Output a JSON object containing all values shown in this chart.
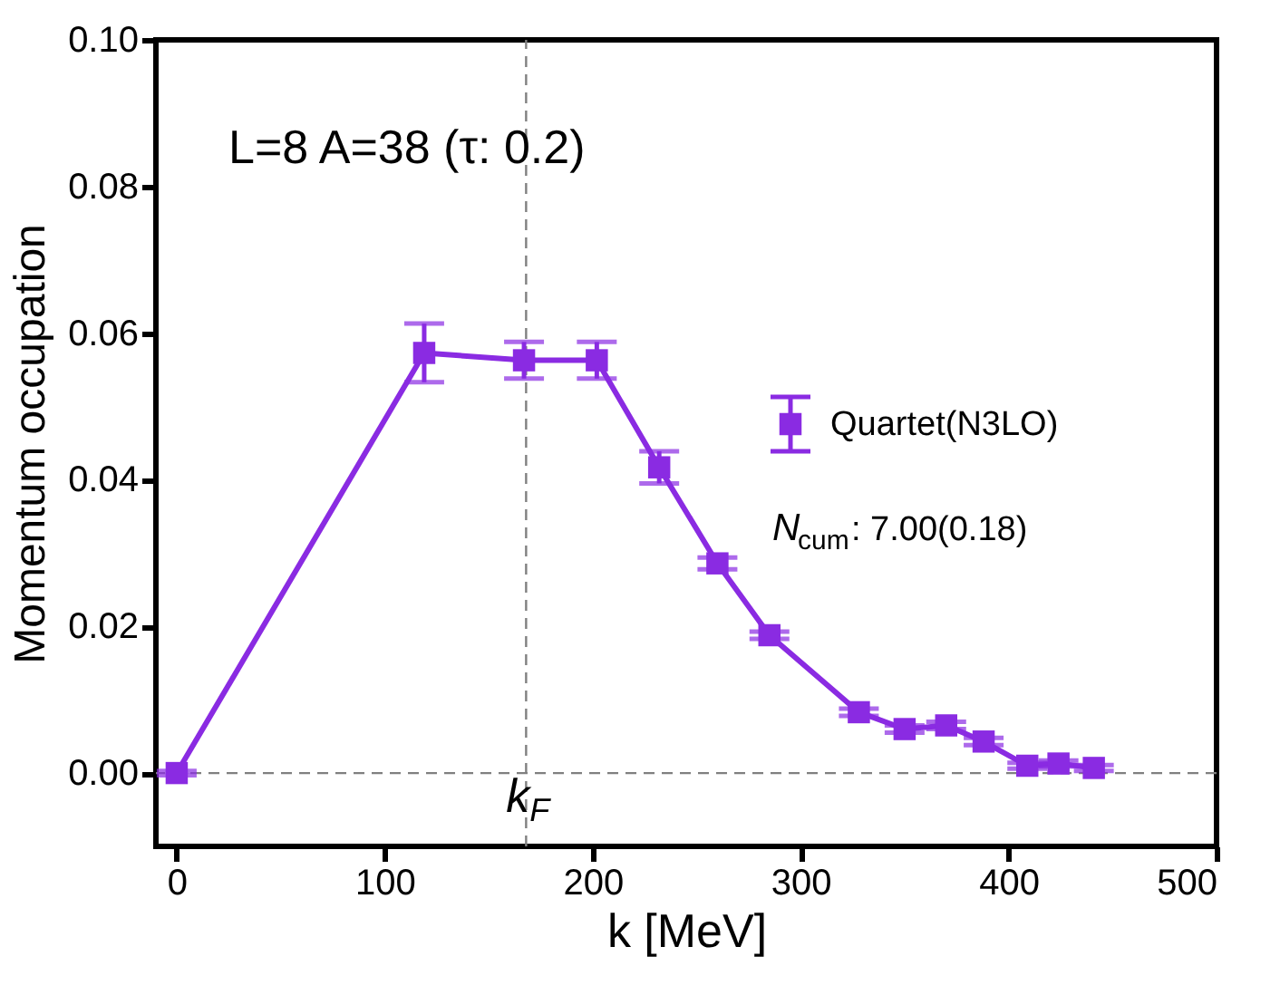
{
  "chart_data": {
    "type": "line",
    "xlabel": "k [MeV]",
    "ylabel": "Momentum occupation",
    "x": [
      0,
      119,
      167,
      202,
      232,
      260,
      285,
      328,
      350,
      370,
      388,
      409,
      424,
      441
    ],
    "series": [
      {
        "name": "Quartet(N3LO)",
        "color": "#8a2be2",
        "values": [
          0.0,
          0.0573,
          0.0563,
          0.0563,
          0.0417,
          0.0286,
          0.0188,
          0.0083,
          0.006,
          0.0065,
          0.0043,
          0.001,
          0.0013,
          0.0007
        ],
        "errors": [
          0.0003,
          0.004,
          0.0025,
          0.0025,
          0.0022,
          0.0008,
          0.0005,
          0.0005,
          0.0005,
          0.0005,
          0.0005,
          0.0004,
          0.0004,
          0.0004
        ]
      }
    ],
    "xlim": [
      -10,
      500
    ],
    "xticks": [
      0,
      100,
      200,
      300,
      400,
      500
    ],
    "ylim": [
      -0.01,
      0.1
    ],
    "yticks": [
      {
        "value": 0,
        "label": "0.00"
      },
      {
        "value": 0.02,
        "label": "0.02"
      },
      {
        "value": 0.04,
        "label": "0.04"
      },
      {
        "value": 0.06,
        "label": "0.06"
      },
      {
        "value": 0.08,
        "label": "0.08"
      },
      {
        "value": 0.1,
        "label": "0.10"
      }
    ],
    "ref_lines": [
      {
        "axis": "x",
        "value": 168,
        "label": "k$_{F}$",
        "color": "#808080",
        "line_style": "dashed"
      },
      {
        "axis": "y",
        "value": 0,
        "color": "#808080",
        "line_style": "dashed"
      }
    ],
    "annotations": [
      "L=8 A=38 (τ: 0.2)",
      "N$_{cum}$: 7.00(0.18)"
    ],
    "legend": "right",
    "marker": "square",
    "line_style": "solid",
    "grid": false
  }
}
